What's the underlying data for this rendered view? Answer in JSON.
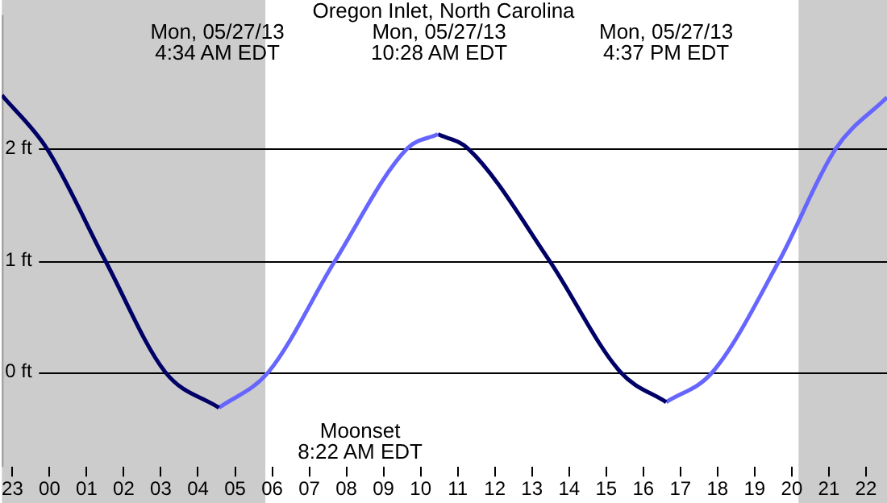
{
  "chart_data": {
    "type": "line",
    "title": "Oregon Inlet, North Carolina",
    "series": [
      {
        "color": "#000066",
        "x": [
          "--05-26T22:43",
          "--05-26T23:56",
          "--05-27T01:30",
          "--05-27T03:07",
          "--05-27T04:34"
        ],
        "values": [
          2.48,
          2.0,
          1.0,
          0.0,
          -0.32
        ]
      },
      {
        "color": "#6666ff",
        "x": [
          "--05-27T04:34",
          "--05-27T05:54",
          "--05-27T07:42",
          "--05-27T09:38",
          "--05-27T10:28"
        ],
        "values": [
          -0.32,
          0.0,
          1.0,
          2.0,
          2.13
        ]
      },
      {
        "color": "#000066",
        "x": [
          "--05-27T10:28",
          "--05-27T11:17",
          "--05-27T13:28",
          "--05-27T15:23",
          "--05-27T16:37"
        ],
        "values": [
          2.13,
          2.0,
          1.0,
          0.0,
          -0.27
        ]
      },
      {
        "color": "#6666ff",
        "x": [
          "--05-27T16:37",
          "--05-27T17:52",
          "--05-27T19:40",
          "--05-27T21:11",
          "--05-27T22:34"
        ],
        "values": [
          -0.27,
          0.0,
          1.0,
          2.0,
          2.46
        ]
      }
    ],
    "xlim": [
      "--05-26T22:43",
      "--05-27T22:34"
    ],
    "xticks": [
      {
        "value": "--05-26T23:00",
        "label": "23"
      },
      {
        "value": "--05-27T00:00",
        "label": "00"
      },
      {
        "value": "--05-27T01:00",
        "label": "01"
      },
      {
        "value": "--05-27T02:00",
        "label": "02"
      },
      {
        "value": "--05-27T03:00",
        "label": "03"
      },
      {
        "value": "--05-27T04:00",
        "label": "04"
      },
      {
        "value": "--05-27T05:00",
        "label": "05"
      },
      {
        "value": "--05-27T06:00",
        "label": "06"
      },
      {
        "value": "--05-27T07:00",
        "label": "07"
      },
      {
        "value": "--05-27T08:00",
        "label": "08"
      },
      {
        "value": "--05-27T09:00",
        "label": "09"
      },
      {
        "value": "--05-27T10:00",
        "label": "10"
      },
      {
        "value": "--05-27T11:00",
        "label": "11"
      },
      {
        "value": "--05-27T12:00",
        "label": "12"
      },
      {
        "value": "--05-27T13:00",
        "label": "13"
      },
      {
        "value": "--05-27T14:00",
        "label": "14"
      },
      {
        "value": "--05-27T15:00",
        "label": "15"
      },
      {
        "value": "--05-27T16:00",
        "label": "16"
      },
      {
        "value": "--05-27T17:00",
        "label": "17"
      },
      {
        "value": "--05-27T18:00",
        "label": "18"
      },
      {
        "value": "--05-27T19:00",
        "label": "19"
      },
      {
        "value": "--05-27T20:00",
        "label": "20"
      },
      {
        "value": "--05-27T21:00",
        "label": "21"
      },
      {
        "value": "--05-27T22:00",
        "label": "22"
      }
    ],
    "ylim": [
      -0.85,
      3.2
    ],
    "yticks": [
      {
        "value": 0,
        "label": "0 ft"
      },
      {
        "value": 1,
        "label": "1 ft"
      },
      {
        "value": 2,
        "label": "2 ft"
      }
    ],
    "grid": "y",
    "bands": [
      {
        "axis": "x",
        "from": "--05-26T22:43",
        "to": "--05-27T05:49",
        "color": "#cccccc"
      },
      {
        "axis": "x",
        "from": "--05-27T20:11",
        "to": "--05-27T22:34",
        "color": "#cccccc"
      }
    ],
    "annotations": [
      "Mon, 05/27/13\n4:34 AM EDT",
      "Mon, 05/27/13\n10:28 AM EDT",
      "Mon, 05/27/13\n4:37 PM EDT",
      "Moonset\n8:22 AM EDT"
    ]
  }
}
